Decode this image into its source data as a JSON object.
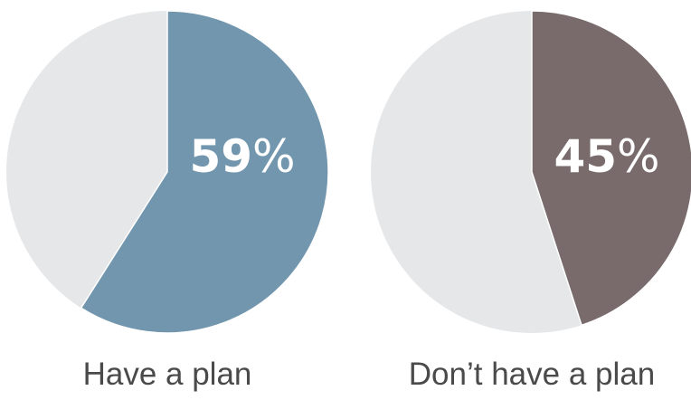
{
  "chart_data": [
    {
      "type": "pie",
      "label": "Have a plan",
      "value": 59,
      "value_display": "59",
      "unit": "%",
      "colors": {
        "highlight": "#7196ae",
        "remainder": "#e6e7e9"
      }
    },
    {
      "type": "pie",
      "label": "Don’t have a plan",
      "value": 45,
      "value_display": "45",
      "unit": "%",
      "colors": {
        "highlight": "#796b6b",
        "remainder": "#e6e7e9"
      }
    }
  ]
}
